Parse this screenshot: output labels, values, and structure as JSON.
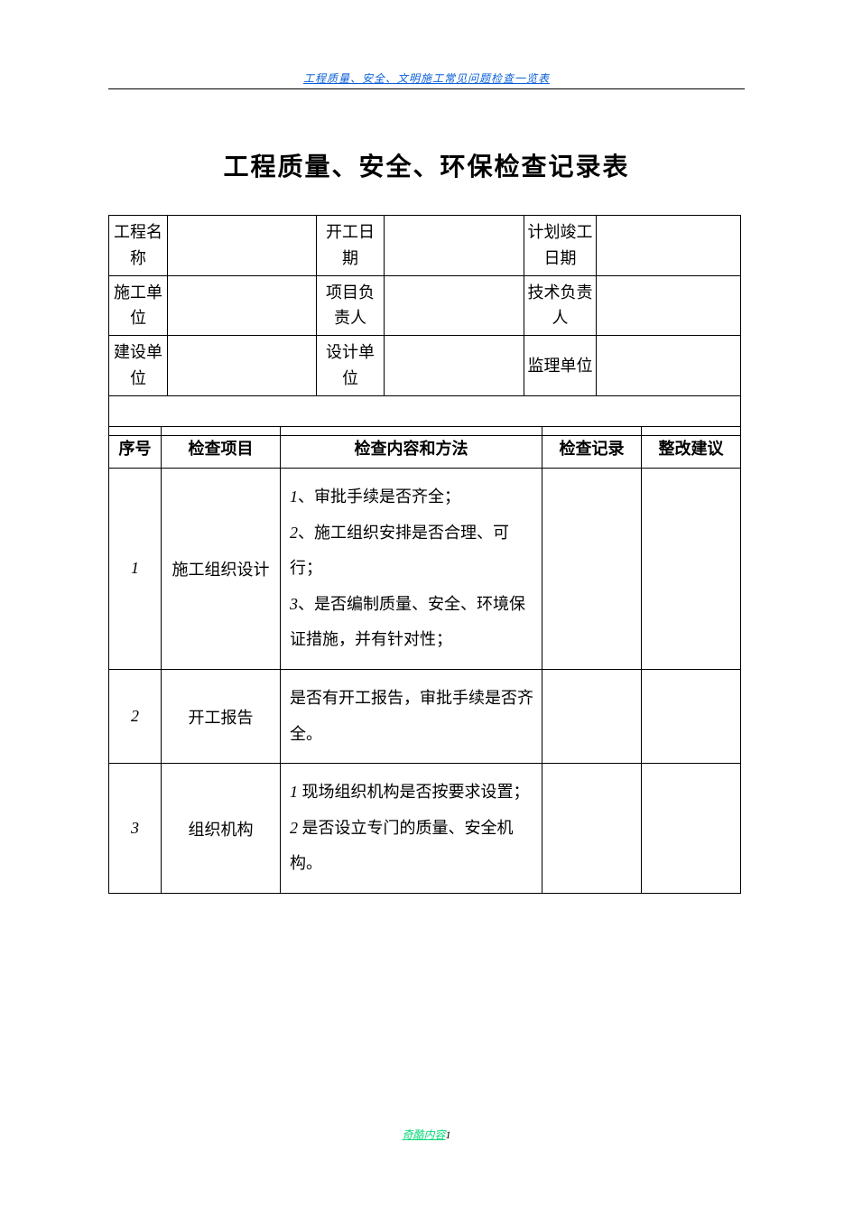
{
  "header_link": "工程质量、安全、文明施工常见问题检查一览表",
  "title": "工程质量、安全、环保检查记录表",
  "info": {
    "r1c1": "工程名称",
    "r1c2": "开工日期",
    "r1c3": "计划竣工日期",
    "r2c1": "施工单位",
    "r2c2": "项目负责人",
    "r2c3": "技术负责人",
    "r3c1": "建设单位",
    "r3c2": "设计单位",
    "r3c3": "监理单位"
  },
  "check_header": {
    "seq": "序号",
    "item": "检查项目",
    "content": "检查内容和方法",
    "record": "检查记录",
    "suggest": "整改建议"
  },
  "rows": [
    {
      "seq": "1",
      "item": "施工组织设计",
      "content": "1、审批手续是否齐全；\n2、施工组织安排是否合理、可行；\n3、是否编制质量、安全、环境保证措施，并有针对性；"
    },
    {
      "seq": "2",
      "item": "开工报告",
      "content": "是否有开工报告，审批手续是否齐全。"
    },
    {
      "seq": "3",
      "item": "组织机构",
      "content": "1 现场组织机构是否按要求设置；\n2 是否设立专门的质量、安全机构。"
    }
  ],
  "footer_text": "奇酷内容",
  "footer_page": "1",
  "colors": {
    "link_color": "#0a5fd7",
    "footer_color": "#0ad77a",
    "border_color": "#000000",
    "text_color": "#000000",
    "background": "#ffffff"
  }
}
